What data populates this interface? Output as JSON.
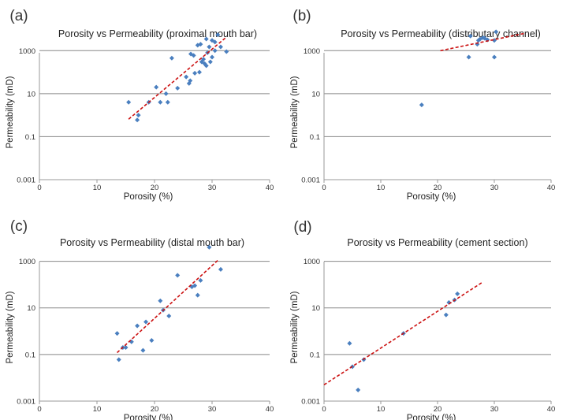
{
  "chart_data": [
    {
      "panel": "(a)",
      "type": "scatter",
      "title": "Porosity vs Permeability (proximal mouth bar)",
      "xlabel": "Porosity (%)",
      "ylabel": "Permeability (mD)",
      "xlim": [
        0,
        40
      ],
      "ylim": [
        0.001,
        10000
      ],
      "yscale": "log",
      "xticks": [
        "0",
        "10",
        "20",
        "30",
        "40"
      ],
      "yticks": [
        "0.001",
        "0.1",
        "10",
        "1000"
      ],
      "points": [
        [
          15.5,
          4
        ],
        [
          17,
          0.6
        ],
        [
          17.2,
          1
        ],
        [
          19,
          4
        ],
        [
          20.3,
          20
        ],
        [
          21,
          4
        ],
        [
          22,
          10
        ],
        [
          22.3,
          4
        ],
        [
          23,
          450
        ],
        [
          24,
          18
        ],
        [
          25.5,
          60
        ],
        [
          26,
          30
        ],
        [
          26.2,
          40
        ],
        [
          26.3,
          700
        ],
        [
          26.8,
          600
        ],
        [
          27,
          90
        ],
        [
          27.5,
          1800
        ],
        [
          27.8,
          100
        ],
        [
          28,
          2000
        ],
        [
          28.2,
          300
        ],
        [
          28.5,
          400
        ],
        [
          28.7,
          250
        ],
        [
          29,
          3500
        ],
        [
          29,
          200
        ],
        [
          29.2,
          800
        ],
        [
          29.5,
          1500
        ],
        [
          29.7,
          300
        ],
        [
          30,
          3000
        ],
        [
          30,
          500
        ],
        [
          30.5,
          2500
        ],
        [
          30.5,
          1000
        ],
        [
          31,
          5500
        ],
        [
          31.5,
          1500
        ],
        [
          32.5,
          900
        ]
      ],
      "trendline": {
        "x": [
          15.5,
          32.5
        ],
        "y": [
          0.65,
          4300
        ]
      }
    },
    {
      "panel": "(b)",
      "type": "scatter",
      "title": "Porosity vs Permeability (distributary channel)",
      "xlabel": "Porosity (%)",
      "ylabel": "Permeability (mD)",
      "xlim": [
        0,
        40
      ],
      "ylim": [
        0.001,
        10000
      ],
      "yscale": "log",
      "xticks": [
        "0",
        "10",
        "20",
        "30",
        "40"
      ],
      "yticks": [
        "0.001",
        "0.1",
        "10",
        "1000"
      ],
      "points": [
        [
          17.2,
          3
        ],
        [
          25.5,
          500
        ],
        [
          25.8,
          4800
        ],
        [
          27,
          2000
        ],
        [
          27.2,
          3000
        ],
        [
          27.5,
          3500
        ],
        [
          28,
          4000
        ],
        [
          28.3,
          3800
        ],
        [
          28.8,
          3200
        ],
        [
          30,
          500
        ],
        [
          30,
          3000
        ],
        [
          30.3,
          7500
        ]
      ],
      "trendline": {
        "x": [
          20.5,
          35.5
        ],
        "y": [
          1000,
          6500
        ]
      }
    },
    {
      "panel": "(c)",
      "type": "scatter",
      "title": "Porosity vs Permeability (distal mouth bar)",
      "xlabel": "Porosity (%)",
      "ylabel": "Permeability (mD)",
      "xlim": [
        0,
        40
      ],
      "ylim": [
        0.001,
        10000
      ],
      "yscale": "log",
      "xticks": [
        "0",
        "10",
        "20",
        "30",
        "40"
      ],
      "yticks": [
        "0.001",
        "0.1",
        "10",
        "1000"
      ],
      "points": [
        [
          13.5,
          0.8
        ],
        [
          13.8,
          0.06
        ],
        [
          14.5,
          0.2
        ],
        [
          15,
          0.2
        ],
        [
          16,
          0.35
        ],
        [
          17,
          1.7
        ],
        [
          18,
          0.15
        ],
        [
          18.5,
          2.5
        ],
        [
          19.5,
          0.4
        ],
        [
          21,
          20
        ],
        [
          21.5,
          8
        ],
        [
          22.5,
          4.5
        ],
        [
          24,
          250
        ],
        [
          26.5,
          80
        ],
        [
          27,
          90
        ],
        [
          27.5,
          35
        ],
        [
          28,
          150
        ],
        [
          29.5,
          4000
        ],
        [
          31.5,
          450
        ]
      ],
      "trendline": {
        "x": [
          13.5,
          31
        ],
        "y": [
          0.12,
          1100
        ]
      }
    },
    {
      "panel": "(d)",
      "type": "scatter",
      "title": "Porosity vs Permeability (cement section)",
      "xlabel": "Porosity (%)",
      "ylabel": "Permeability (mD)",
      "xlim": [
        0,
        40
      ],
      "ylim": [
        0.001,
        10000
      ],
      "yscale": "log",
      "xticks": [
        "0",
        "10",
        "20",
        "30",
        "40"
      ],
      "yticks": [
        "0.001",
        "0.1",
        "10",
        "1000"
      ],
      "points": [
        [
          4.5,
          0.3
        ],
        [
          5,
          0.03
        ],
        [
          6,
          0.003
        ],
        [
          7,
          0.06
        ],
        [
          14,
          0.8
        ],
        [
          21.5,
          5
        ],
        [
          22,
          17
        ],
        [
          23,
          22
        ],
        [
          23.5,
          40
        ]
      ],
      "trendline": {
        "x": [
          0,
          28
        ],
        "y": [
          0.005,
          130
        ]
      }
    }
  ],
  "colors": {
    "marker": "#4a7fbf",
    "trendline": "#cc1111",
    "gridline": "#888888",
    "axis": "#999999"
  }
}
